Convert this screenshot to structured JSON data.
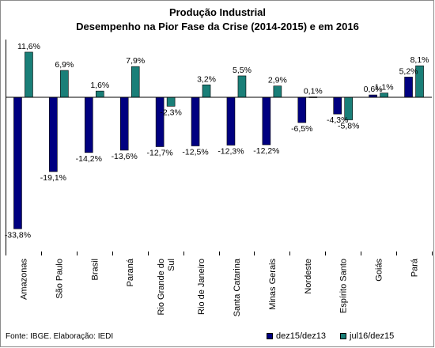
{
  "chart_data": {
    "type": "bar",
    "title": "Produção Industrial",
    "subtitle": "Desempenho na Pior Fase da Crise (2014-2015) e em 2016",
    "categories": [
      "Amazonas",
      "São Paulo",
      "Brasil",
      "Paraná",
      "Rio Grande do Sul",
      "Rio de Janeiro",
      "Santa Catarina",
      "Minas Gerais",
      "Nordeste",
      "Espírito Santo",
      "Goiás",
      "Pará"
    ],
    "series": [
      {
        "name": "dez15/dez13",
        "color": "#000080",
        "values": [
          -33.8,
          -19.1,
          -14.2,
          -13.6,
          -12.7,
          -12.5,
          -12.3,
          -12.2,
          -6.5,
          -4.3,
          0.6,
          5.2
        ],
        "labels": [
          "-33,8%",
          "-19,1%",
          "-14,2%",
          "-13,6%",
          "-12,7%",
          "-12,5%",
          "-12,3%",
          "-12,2%",
          "-6,5%",
          "-4,3%",
          "0,6%",
          "5,2%"
        ]
      },
      {
        "name": "jul16/dez15",
        "color": "#1a7f78",
        "values": [
          11.6,
          6.9,
          1.6,
          7.9,
          -2.3,
          3.2,
          5.5,
          2.9,
          0.1,
          -5.8,
          1.1,
          8.1
        ],
        "labels": [
          "11,6%",
          "6,9%",
          "1,6%",
          "7,9%",
          "-2,3%",
          "3,2%",
          "5,5%",
          "2,9%",
          "0,1%",
          "-5,8%",
          "1,1%",
          "8,1%"
        ]
      }
    ],
    "ylim": [
      -36,
      14
    ],
    "grid": false,
    "legend_position": "bottom-right"
  },
  "footer": {
    "source": "Fonte: IBGE. Elaboração: IEDI"
  }
}
